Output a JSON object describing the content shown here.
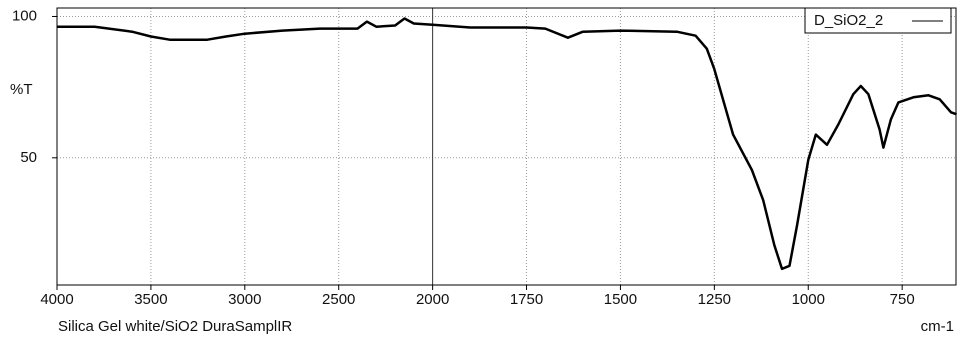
{
  "chart_data": {
    "type": "line",
    "x_label": "cm-1",
    "y_label": "%T",
    "note": "Silica Gel white/SiO2  DuraSamplIR",
    "xlim": [
      4000,
      604
    ],
    "x_break": 2000,
    "x_break_zoom": 2,
    "xticks": [
      4000,
      3500,
      3000,
      2500,
      2000,
      1750,
      1500,
      1250,
      1000,
      750
    ],
    "ylim": [
      5,
      103
    ],
    "yticks": [
      100,
      50
    ],
    "grid": true,
    "legend": "top-right",
    "x": [
      4000,
      3800,
      3600,
      3500,
      3400,
      3200,
      3100,
      3000,
      2800,
      2600,
      2400,
      2350,
      2300,
      2200,
      2150,
      2100,
      2000,
      1900,
      1750,
      1700,
      1640,
      1600,
      1500,
      1350,
      1300,
      1270,
      1250,
      1200,
      1150,
      1120,
      1090,
      1070,
      1050,
      1030,
      1000,
      980,
      950,
      920,
      880,
      860,
      840,
      810,
      800,
      780,
      760,
      720,
      680,
      650,
      620,
      605
    ],
    "series": [
      {
        "name": "D_SiO2_2",
        "color": "#000000",
        "values": [
          96.4,
          96.4,
          94.6,
          92.9,
          91.8,
          91.8,
          92.9,
          93.9,
          95,
          95.7,
          95.7,
          98.2,
          96.4,
          96.8,
          99.3,
          97.5,
          97.1,
          96.1,
          96.1,
          95.7,
          92.5,
          94.6,
          95,
          94.6,
          93.2,
          88.6,
          81.4,
          58.2,
          45.7,
          35,
          19,
          10.7,
          11.8,
          26,
          49.3,
          58.2,
          54.6,
          61.8,
          72.5,
          75.4,
          72.5,
          60,
          53.6,
          63.6,
          69.6,
          71.4,
          72.1,
          70.7,
          66.1,
          65.4
        ]
      }
    ]
  }
}
